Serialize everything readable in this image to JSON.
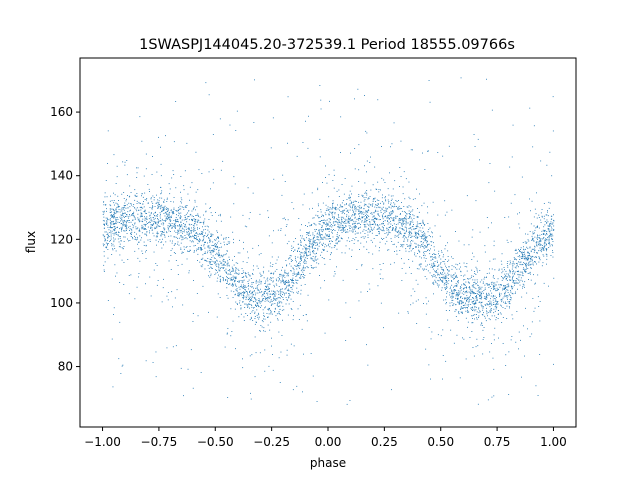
{
  "chart_data": {
    "type": "scatter",
    "title": "1SWASPJ144045.20-372539.1 Period 18555.09766s",
    "xlabel": "phase",
    "ylabel": "flux",
    "xlim": [
      -1.1,
      1.1
    ],
    "ylim": [
      61,
      177
    ],
    "xticks": [
      -1.0,
      -0.75,
      -0.5,
      -0.25,
      0.0,
      0.25,
      0.5,
      0.75,
      1.0
    ],
    "xtick_labels": [
      "−1.00",
      "−0.75",
      "−0.50",
      "−0.25",
      "0.00",
      "0.25",
      "0.50",
      "0.75",
      "1.00"
    ],
    "yticks": [
      80,
      100,
      120,
      140,
      160
    ],
    "ytick_labels": [
      "80",
      "100",
      "120",
      "140",
      "160"
    ],
    "grid": false,
    "legend": "none",
    "point_color": "#1f77b4",
    "series": [
      {
        "x": [
          -1.0,
          -0.9,
          -0.8,
          -0.75,
          -0.7,
          -0.6,
          -0.5,
          -0.45,
          -0.4,
          -0.35,
          -0.3,
          -0.25,
          -0.2,
          -0.15,
          -0.1,
          -0.05,
          0.0,
          0.05,
          0.1,
          0.15,
          0.2,
          0.25,
          0.3,
          0.35,
          0.4,
          0.45,
          0.5,
          0.55,
          0.6,
          0.65,
          0.7,
          0.75,
          0.8,
          0.85,
          0.9,
          0.95,
          1.0
        ],
        "y": [
          124,
          126,
          127,
          127,
          126,
          123,
          116,
          111,
          106,
          103,
          102,
          103,
          105,
          110,
          116,
          120,
          124,
          126,
          127,
          127,
          127,
          127,
          126,
          124,
          121,
          116,
          110,
          105,
          103,
          102,
          102,
          103,
          106,
          111,
          116,
          120,
          123
        ],
        "band_halfwidth": 8
      }
    ]
  }
}
